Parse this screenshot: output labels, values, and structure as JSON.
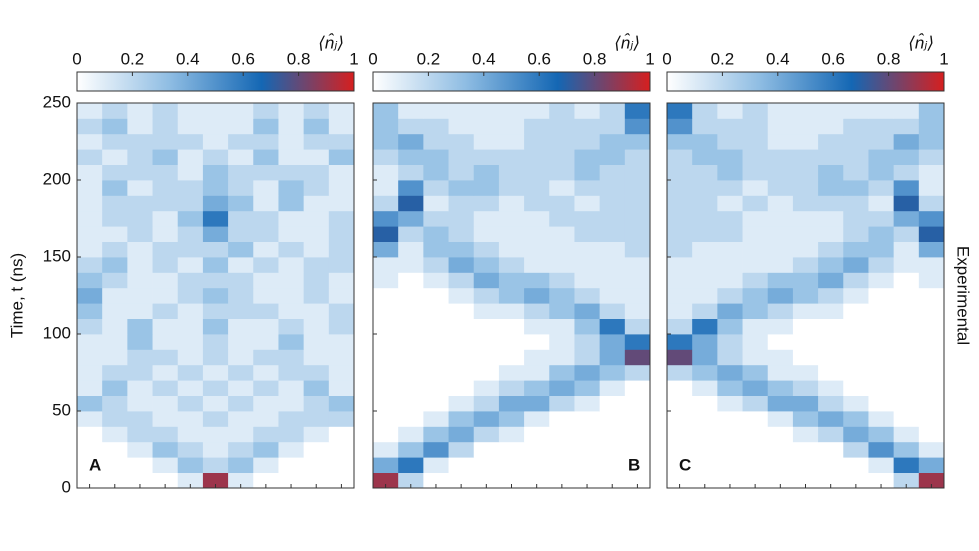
{
  "chart_data": [
    {
      "type": "heatmap",
      "label": "A",
      "ylabel": "Time, t (ns)",
      "colorbar_label": "⟨n̂ⱼ⟩",
      "colors": [
        "#ffffff",
        "#8fbde3",
        "#1467b4",
        "#d61f1f"
      ],
      "clim": [
        0,
        1
      ],
      "cticks": [
        0,
        0.2,
        0.4,
        0.6,
        0.8,
        1
      ],
      "ylim": [
        0,
        250
      ],
      "yticks": [
        0,
        50,
        100,
        150,
        200,
        250
      ],
      "y_bins": [
        0,
        10,
        20,
        30,
        40,
        50,
        60,
        70,
        80,
        90,
        100,
        110,
        120,
        130,
        140,
        150,
        160,
        170,
        180,
        190,
        200,
        210,
        220,
        230,
        240,
        250
      ],
      "categories": [
        null,
        null,
        null,
        null,
        null,
        null,
        null,
        null,
        null,
        null,
        null
      ],
      "values": [
        [
          0,
          0,
          0,
          0,
          0.1,
          0.9,
          0.1,
          0,
          0,
          0,
          0
        ],
        [
          0,
          0,
          0,
          0.1,
          0.3,
          0.2,
          0.3,
          0.1,
          0,
          0,
          0
        ],
        [
          0,
          0,
          0.1,
          0.3,
          0.2,
          0.1,
          0.2,
          0.3,
          0.1,
          0,
          0
        ],
        [
          0,
          0.1,
          0.2,
          0.2,
          0.1,
          0.1,
          0.1,
          0.2,
          0.2,
          0.1,
          0
        ],
        [
          0.1,
          0.2,
          0.2,
          0.1,
          0.1,
          0.2,
          0.1,
          0.1,
          0.2,
          0.2,
          0.2
        ],
        [
          0.3,
          0.2,
          0.1,
          0.1,
          0.2,
          0.1,
          0.2,
          0.1,
          0.1,
          0.2,
          0.3
        ],
        [
          0.1,
          0.3,
          0.1,
          0.2,
          0.1,
          0.2,
          0.1,
          0.2,
          0.1,
          0.3,
          0.1
        ],
        [
          0.1,
          0.2,
          0.2,
          0.1,
          0.2,
          0.1,
          0.2,
          0.1,
          0.2,
          0.2,
          0.1
        ],
        [
          0.1,
          0.1,
          0.2,
          0.2,
          0.1,
          0.2,
          0.1,
          0.2,
          0.2,
          0.1,
          0.1
        ],
        [
          0.1,
          0.1,
          0.3,
          0.1,
          0.1,
          0.2,
          0.1,
          0.1,
          0.3,
          0.1,
          0.1
        ],
        [
          0.2,
          0.1,
          0.3,
          0.1,
          0.1,
          0.3,
          0.1,
          0.1,
          0.2,
          0.1,
          0.2
        ],
        [
          0.3,
          0.1,
          0.1,
          0.2,
          0.1,
          0.2,
          0.2,
          0.2,
          0.1,
          0.1,
          0.2
        ],
        [
          0.4,
          0.1,
          0.1,
          0.1,
          0.2,
          0.3,
          0.2,
          0.1,
          0.1,
          0.2,
          0.1
        ],
        [
          0.3,
          0.2,
          0.1,
          0.1,
          0.2,
          0.2,
          0.2,
          0.1,
          0.1,
          0.2,
          0.1
        ],
        [
          0.2,
          0.3,
          0.1,
          0.2,
          0.1,
          0.3,
          0.1,
          0.2,
          0.1,
          0.2,
          0.2
        ],
        [
          0.1,
          0.2,
          0.1,
          0.2,
          0.2,
          0.2,
          0.3,
          0.1,
          0.2,
          0.1,
          0.2
        ],
        [
          0.1,
          0.1,
          0.2,
          0.1,
          0.2,
          0.4,
          0.2,
          0.2,
          0.1,
          0.1,
          0.2
        ],
        [
          0.1,
          0.2,
          0.2,
          0.1,
          0.3,
          0.6,
          0.2,
          0.2,
          0.1,
          0.1,
          0.2
        ],
        [
          0.1,
          0.2,
          0.2,
          0.2,
          0.2,
          0.4,
          0.3,
          0.1,
          0.3,
          0.1,
          0.1
        ],
        [
          0.1,
          0.3,
          0.1,
          0.2,
          0.2,
          0.3,
          0.2,
          0.1,
          0.3,
          0.2,
          0.1
        ],
        [
          0.1,
          0.2,
          0.2,
          0.2,
          0.1,
          0.3,
          0.2,
          0.2,
          0.2,
          0.2,
          0.1
        ],
        [
          0.2,
          0.1,
          0.2,
          0.3,
          0.1,
          0.2,
          0.1,
          0.3,
          0.1,
          0.1,
          0.3
        ],
        [
          0.1,
          0.2,
          0.2,
          0.2,
          0.2,
          0.1,
          0.2,
          0.2,
          0.1,
          0.2,
          0.2
        ],
        [
          0.2,
          0.3,
          0.1,
          0.2,
          0.1,
          0.1,
          0.1,
          0.3,
          0.1,
          0.3,
          0.1
        ],
        [
          0.1,
          0.2,
          0.1,
          0.2,
          0.1,
          0.1,
          0.1,
          0.2,
          0.1,
          0.2,
          0.1
        ]
      ]
    },
    {
      "type": "heatmap",
      "label": "B",
      "colorbar_label": "⟨n̂ⱼ⟩",
      "colors": [
        "#ffffff",
        "#8fbde3",
        "#1467b4",
        "#d61f1f"
      ],
      "clim": [
        0,
        1
      ],
      "cticks": [
        0,
        0.2,
        0.4,
        0.6,
        0.8,
        1
      ],
      "ylim": [
        0,
        250
      ],
      "yticks": [
        0,
        50,
        100,
        150,
        200,
        250
      ],
      "y_bins": [
        0,
        10,
        20,
        30,
        40,
        50,
        60,
        70,
        80,
        90,
        100,
        110,
        120,
        130,
        140,
        150,
        160,
        170,
        180,
        190,
        200,
        210,
        220,
        230,
        240,
        250
      ],
      "categories": [
        null,
        null,
        null,
        null,
        null,
        null,
        null,
        null,
        null,
        null,
        null
      ],
      "values": [
        [
          0.9,
          0.2,
          0,
          0,
          0,
          0,
          0,
          0,
          0,
          0,
          0
        ],
        [
          0.4,
          0.6,
          0.1,
          0,
          0,
          0,
          0,
          0,
          0,
          0,
          0
        ],
        [
          0.1,
          0.3,
          0.5,
          0.2,
          0,
          0,
          0,
          0,
          0,
          0,
          0
        ],
        [
          0,
          0.1,
          0.3,
          0.4,
          0.2,
          0.1,
          0,
          0,
          0,
          0,
          0
        ],
        [
          0,
          0,
          0.1,
          0.3,
          0.4,
          0.3,
          0.1,
          0,
          0,
          0,
          0
        ],
        [
          0,
          0,
          0,
          0.1,
          0.2,
          0.4,
          0.4,
          0.2,
          0.1,
          0,
          0
        ],
        [
          0,
          0,
          0,
          0,
          0.1,
          0.2,
          0.3,
          0.4,
          0.3,
          0.1,
          0
        ],
        [
          0,
          0,
          0,
          0,
          0,
          0.1,
          0.1,
          0.3,
          0.4,
          0.3,
          0.2
        ],
        [
          0,
          0,
          0,
          0,
          0,
          0,
          0.1,
          0.1,
          0.2,
          0.4,
          0.8
        ],
        [
          0,
          0,
          0,
          0,
          0,
          0,
          0,
          0.1,
          0.2,
          0.4,
          0.6
        ],
        [
          0,
          0,
          0,
          0,
          0,
          0,
          0.1,
          0.1,
          0.3,
          0.6,
          0.2
        ],
        [
          0,
          0,
          0,
          0,
          0.1,
          0.1,
          0.2,
          0.3,
          0.4,
          0.2,
          0.1
        ],
        [
          0,
          0,
          0,
          0.1,
          0.2,
          0.3,
          0.4,
          0.3,
          0.2,
          0.1,
          0.1
        ],
        [
          0.1,
          0,
          0.1,
          0.2,
          0.4,
          0.3,
          0.3,
          0.2,
          0.1,
          0.1,
          0.1
        ],
        [
          0.1,
          0.1,
          0.2,
          0.4,
          0.3,
          0.2,
          0.1,
          0.1,
          0.1,
          0.1,
          0.1
        ],
        [
          0.4,
          0.1,
          0.3,
          0.3,
          0.2,
          0.1,
          0.1,
          0.1,
          0.1,
          0.1,
          0.2
        ],
        [
          0.7,
          0.2,
          0.3,
          0.2,
          0.1,
          0.1,
          0.1,
          0.1,
          0.2,
          0.2,
          0.2
        ],
        [
          0.5,
          0.4,
          0.2,
          0.2,
          0.1,
          0.1,
          0.1,
          0.2,
          0.2,
          0.2,
          0.2
        ],
        [
          0.2,
          0.7,
          0.1,
          0.2,
          0.2,
          0.1,
          0.2,
          0.2,
          0.1,
          0.2,
          0.2
        ],
        [
          0.1,
          0.5,
          0.2,
          0.3,
          0.3,
          0.2,
          0.2,
          0.1,
          0.2,
          0.2,
          0.2
        ],
        [
          0.1,
          0.2,
          0.3,
          0.2,
          0.3,
          0.2,
          0.2,
          0.2,
          0.3,
          0.2,
          0.2
        ],
        [
          0.2,
          0.3,
          0.3,
          0.2,
          0.2,
          0.2,
          0.2,
          0.2,
          0.3,
          0.3,
          0.2
        ],
        [
          0.3,
          0.4,
          0.2,
          0.2,
          0.1,
          0.1,
          0.2,
          0.2,
          0.2,
          0.3,
          0.3
        ],
        [
          0.3,
          0.2,
          0.2,
          0.1,
          0.1,
          0.1,
          0.2,
          0.2,
          0.2,
          0.2,
          0.5
        ],
        [
          0.3,
          0.1,
          0.1,
          0.1,
          0.1,
          0.1,
          0.1,
          0.2,
          0.1,
          0.2,
          0.6
        ]
      ]
    },
    {
      "type": "heatmap",
      "label": "C",
      "colorbar_label": "⟨n̂ⱼ⟩",
      "annotation": "Experimental",
      "colors": [
        "#ffffff",
        "#8fbde3",
        "#1467b4",
        "#d61f1f"
      ],
      "clim": [
        0,
        1
      ],
      "cticks": [
        0,
        0.2,
        0.4,
        0.6,
        0.8,
        1
      ],
      "ylim": [
        0,
        250
      ],
      "yticks": [
        0,
        50,
        100,
        150,
        200,
        250
      ],
      "y_bins": [
        0,
        10,
        20,
        30,
        40,
        50,
        60,
        70,
        80,
        90,
        100,
        110,
        120,
        130,
        140,
        150,
        160,
        170,
        180,
        190,
        200,
        210,
        220,
        230,
        240,
        250
      ],
      "categories": [
        null,
        null,
        null,
        null,
        null,
        null,
        null,
        null,
        null,
        null,
        null
      ],
      "values": [
        [
          0,
          0,
          0,
          0,
          0,
          0,
          0,
          0,
          0,
          0.2,
          0.9
        ],
        [
          0,
          0,
          0,
          0,
          0,
          0,
          0,
          0,
          0.1,
          0.6,
          0.4
        ],
        [
          0,
          0,
          0,
          0,
          0,
          0,
          0,
          0.2,
          0.5,
          0.3,
          0.1
        ],
        [
          0,
          0,
          0,
          0,
          0,
          0.1,
          0.2,
          0.4,
          0.3,
          0.1,
          0
        ],
        [
          0,
          0,
          0,
          0,
          0.1,
          0.3,
          0.4,
          0.3,
          0.1,
          0,
          0
        ],
        [
          0,
          0,
          0.1,
          0.2,
          0.4,
          0.4,
          0.2,
          0.1,
          0,
          0,
          0
        ],
        [
          0,
          0.1,
          0.3,
          0.4,
          0.3,
          0.2,
          0.1,
          0,
          0,
          0,
          0
        ],
        [
          0.2,
          0.3,
          0.4,
          0.3,
          0.1,
          0.1,
          0,
          0,
          0,
          0,
          0
        ],
        [
          0.8,
          0.4,
          0.2,
          0.1,
          0.1,
          0,
          0,
          0,
          0,
          0,
          0
        ],
        [
          0.6,
          0.4,
          0.2,
          0.1,
          0,
          0,
          0,
          0,
          0,
          0,
          0
        ],
        [
          0.2,
          0.6,
          0.3,
          0.1,
          0.1,
          0,
          0,
          0,
          0,
          0,
          0
        ],
        [
          0.1,
          0.2,
          0.4,
          0.3,
          0.2,
          0.1,
          0.1,
          0,
          0,
          0,
          0
        ],
        [
          0.1,
          0.1,
          0.2,
          0.3,
          0.4,
          0.3,
          0.2,
          0.1,
          0,
          0,
          0
        ],
        [
          0.1,
          0.1,
          0.1,
          0.2,
          0.3,
          0.3,
          0.4,
          0.2,
          0.1,
          0,
          0.1
        ],
        [
          0.1,
          0.1,
          0.1,
          0.1,
          0.1,
          0.2,
          0.3,
          0.4,
          0.2,
          0.1,
          0.1
        ],
        [
          0.2,
          0.1,
          0.1,
          0.1,
          0.1,
          0.1,
          0.2,
          0.3,
          0.3,
          0.1,
          0.4
        ],
        [
          0.2,
          0.2,
          0.2,
          0.1,
          0.1,
          0.1,
          0.1,
          0.2,
          0.3,
          0.2,
          0.7
        ],
        [
          0.2,
          0.2,
          0.2,
          0.1,
          0.1,
          0.1,
          0.1,
          0.2,
          0.2,
          0.4,
          0.5
        ],
        [
          0.2,
          0.2,
          0.1,
          0.2,
          0.1,
          0.2,
          0.2,
          0.2,
          0.1,
          0.7,
          0.2
        ],
        [
          0.2,
          0.2,
          0.2,
          0.1,
          0.2,
          0.2,
          0.3,
          0.3,
          0.2,
          0.5,
          0.1
        ],
        [
          0.2,
          0.2,
          0.3,
          0.2,
          0.2,
          0.2,
          0.3,
          0.2,
          0.3,
          0.2,
          0.1
        ],
        [
          0.2,
          0.3,
          0.3,
          0.2,
          0.2,
          0.2,
          0.2,
          0.2,
          0.3,
          0.3,
          0.2
        ],
        [
          0.3,
          0.3,
          0.2,
          0.2,
          0.1,
          0.1,
          0.2,
          0.2,
          0.2,
          0.4,
          0.3
        ],
        [
          0.5,
          0.2,
          0.2,
          0.2,
          0.1,
          0.1,
          0.1,
          0.2,
          0.2,
          0.2,
          0.3
        ],
        [
          0.6,
          0.2,
          0.1,
          0.2,
          0.1,
          0.1,
          0.1,
          0.1,
          0.1,
          0.1,
          0.3
        ]
      ]
    }
  ]
}
